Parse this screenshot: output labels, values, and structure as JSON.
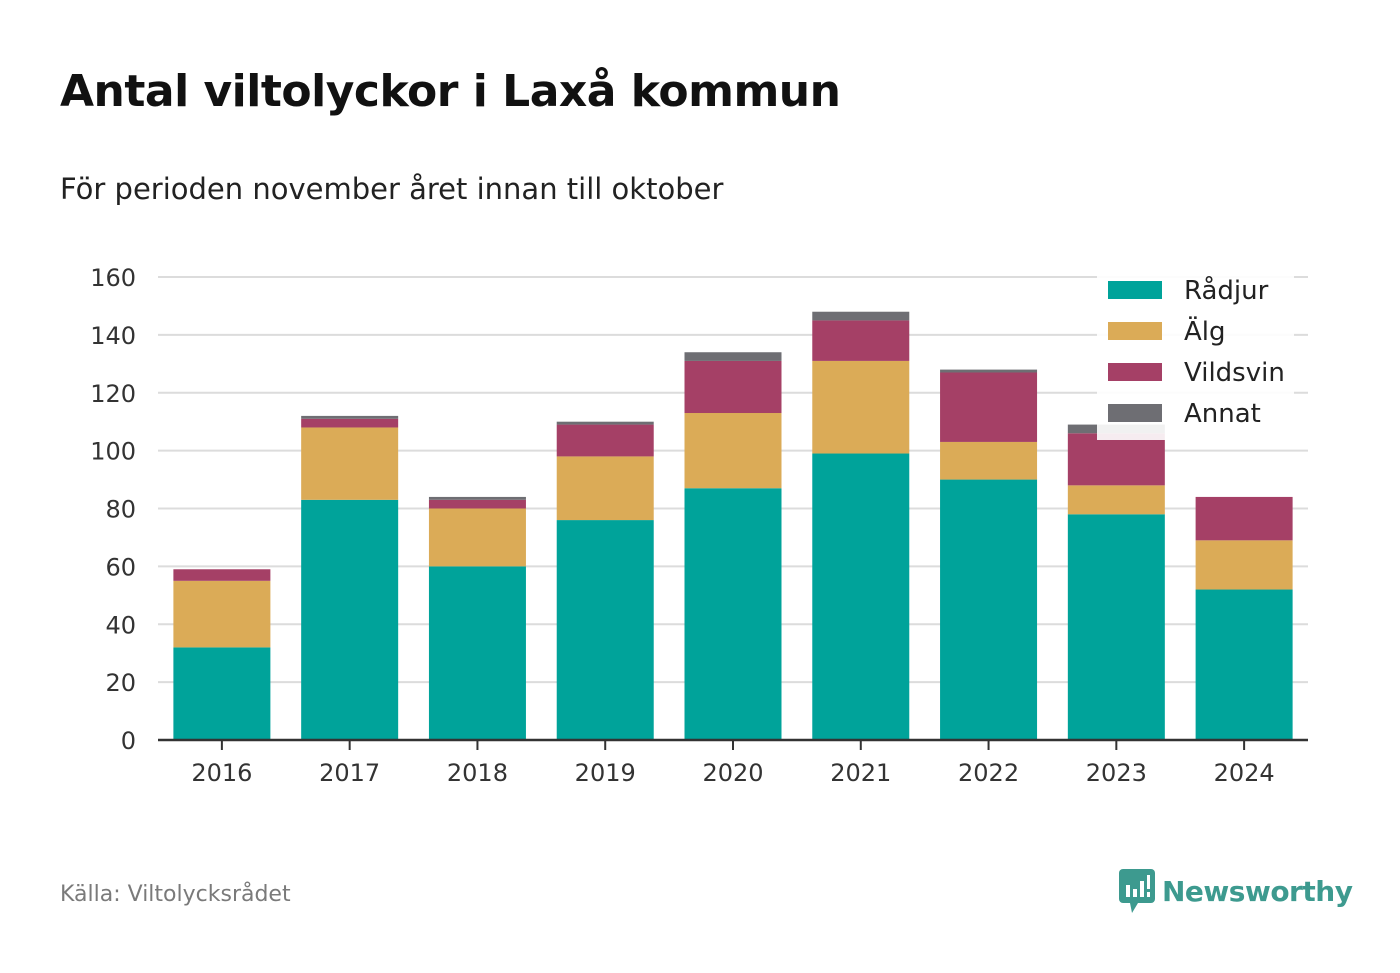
{
  "title": "Antal viltolyckor i Laxå kommun",
  "subtitle": "För perioden november året innan till oktober",
  "source": "Källa: Viltolycksrådet",
  "logo": {
    "text": "Newsworthy",
    "icon": "newsworthy-chart-icon",
    "color": "#3d9a8f"
  },
  "chart_data": {
    "type": "bar",
    "stacked": true,
    "categories": [
      "2016",
      "2017",
      "2018",
      "2019",
      "2020",
      "2021",
      "2022",
      "2023",
      "2024"
    ],
    "series": [
      {
        "name": "Rådjur",
        "color": "#00a39a",
        "values": [
          32,
          83,
          60,
          76,
          87,
          99,
          90,
          78,
          52
        ]
      },
      {
        "name": "Älg",
        "color": "#dbab57",
        "values": [
          23,
          25,
          20,
          22,
          26,
          32,
          13,
          10,
          17
        ]
      },
      {
        "name": "Vildsvin",
        "color": "#a54066",
        "values": [
          4,
          3,
          3,
          11,
          18,
          14,
          24,
          18,
          15
        ]
      },
      {
        "name": "Annat",
        "color": "#6e6e73",
        "values": [
          0,
          1,
          1,
          1,
          3,
          3,
          1,
          3,
          0
        ]
      }
    ],
    "yticks": [
      "0",
      "20",
      "40",
      "60",
      "80",
      "100",
      "120",
      "140",
      "160"
    ],
    "ylim": [
      0,
      160
    ],
    "grid": true,
    "legend": "top-right"
  }
}
